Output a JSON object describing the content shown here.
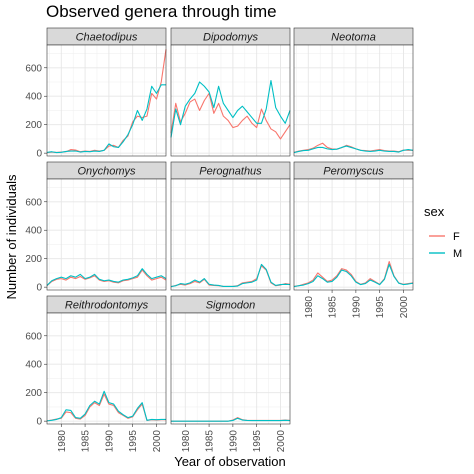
{
  "chart_data": {
    "type": "line",
    "title": "Observed genera through time",
    "xlabel": "Year of observation",
    "ylabel": "Number of individuals",
    "xlim": [
      1977,
      2002
    ],
    "ylim": [
      -20,
      760
    ],
    "x_ticks": [
      1980,
      1985,
      1990,
      1995,
      2000
    ],
    "y_ticks": [
      0,
      200,
      400,
      600
    ],
    "grid": true,
    "legend": {
      "title": "sex",
      "position": "right"
    },
    "series_styles": [
      {
        "name": "F",
        "color": "#F8766D"
      },
      {
        "name": "M",
        "color": "#00BFC4"
      }
    ],
    "x": [
      1977,
      1978,
      1979,
      1980,
      1981,
      1982,
      1983,
      1984,
      1985,
      1986,
      1987,
      1988,
      1989,
      1990,
      1991,
      1992,
      1993,
      1994,
      1995,
      1996,
      1997,
      1998,
      1999,
      2000,
      2001,
      2002
    ],
    "panels": [
      {
        "genus": "Chaetodipus",
        "F": [
          3,
          8,
          5,
          8,
          10,
          25,
          22,
          10,
          15,
          12,
          20,
          15,
          20,
          50,
          55,
          40,
          90,
          120,
          220,
          260,
          250,
          260,
          420,
          380,
          500,
          730
        ],
        "M": [
          5,
          10,
          4,
          6,
          12,
          15,
          15,
          8,
          12,
          10,
          15,
          12,
          20,
          65,
          45,
          40,
          80,
          130,
          200,
          300,
          230,
          310,
          470,
          420,
          480,
          480
        ]
      },
      {
        "genus": "Dipodomys",
        "F": [
          140,
          350,
          220,
          280,
          360,
          380,
          300,
          370,
          420,
          280,
          350,
          260,
          230,
          180,
          190,
          230,
          260,
          210,
          180,
          310,
          230,
          170,
          150,
          100,
          150,
          200
        ],
        "M": [
          110,
          310,
          200,
          330,
          380,
          420,
          500,
          470,
          430,
          320,
          470,
          350,
          300,
          250,
          300,
          330,
          290,
          250,
          210,
          210,
          310,
          510,
          320,
          260,
          210,
          300
        ]
      },
      {
        "genus": "Neotoma",
        "F": [
          5,
          15,
          20,
          25,
          35,
          55,
          70,
          40,
          30,
          28,
          38,
          55,
          45,
          30,
          20,
          18,
          15,
          20,
          25,
          18,
          15,
          15,
          10,
          22,
          20,
          20
        ],
        "M": [
          4,
          12,
          18,
          20,
          30,
          40,
          40,
          30,
          25,
          28,
          40,
          50,
          40,
          30,
          20,
          15,
          12,
          15,
          20,
          15,
          12,
          12,
          8,
          20,
          25,
          20
        ]
      },
      {
        "genus": "Onychomys",
        "F": [
          10,
          40,
          55,
          60,
          50,
          70,
          60,
          75,
          55,
          65,
          80,
          50,
          40,
          45,
          35,
          30,
          45,
          50,
          60,
          70,
          120,
          80,
          50,
          60,
          70,
          50
        ],
        "M": [
          12,
          45,
          60,
          70,
          60,
          80,
          70,
          90,
          60,
          70,
          90,
          55,
          45,
          50,
          40,
          35,
          50,
          55,
          65,
          80,
          130,
          90,
          60,
          70,
          80,
          60
        ]
      },
      {
        "genus": "Perognathus",
        "F": [
          3,
          12,
          20,
          15,
          25,
          40,
          30,
          55,
          15,
          12,
          10,
          5,
          5,
          5,
          10,
          30,
          35,
          40,
          60,
          150,
          120,
          30,
          10,
          15,
          25,
          20
        ],
        "M": [
          4,
          10,
          25,
          20,
          30,
          50,
          35,
          60,
          20,
          15,
          12,
          5,
          5,
          5,
          8,
          25,
          30,
          35,
          50,
          160,
          125,
          35,
          12,
          18,
          20,
          18
        ]
      },
      {
        "genus": "Peromyscus",
        "F": [
          5,
          10,
          20,
          30,
          50,
          100,
          70,
          40,
          50,
          80,
          130,
          120,
          90,
          40,
          20,
          30,
          60,
          40,
          20,
          60,
          180,
          80,
          30,
          20,
          25,
          30
        ],
        "M": [
          4,
          10,
          15,
          25,
          40,
          80,
          60,
          35,
          40,
          70,
          120,
          110,
          80,
          35,
          18,
          25,
          50,
          35,
          18,
          55,
          160,
          75,
          28,
          18,
          22,
          28
        ]
      },
      {
        "genus": "Reithrodontomys",
        "F": [
          2,
          8,
          15,
          20,
          65,
          60,
          20,
          15,
          40,
          100,
          130,
          110,
          190,
          120,
          110,
          60,
          40,
          20,
          30,
          80,
          120,
          5,
          10,
          8,
          10,
          10
        ],
        "M": [
          2,
          6,
          12,
          25,
          80,
          75,
          25,
          20,
          50,
          110,
          140,
          120,
          210,
          130,
          120,
          70,
          45,
          25,
          35,
          90,
          130,
          6,
          12,
          10,
          12,
          12
        ]
      },
      {
        "genus": "Sigmodon",
        "F": [
          0,
          0,
          0,
          0,
          0,
          0,
          0,
          0,
          0,
          0,
          0,
          0,
          0,
          8,
          25,
          10,
          5,
          5,
          5,
          5,
          5,
          5,
          5,
          5,
          8,
          5
        ],
        "M": [
          0,
          0,
          0,
          0,
          0,
          0,
          0,
          0,
          0,
          0,
          0,
          0,
          0,
          5,
          20,
          8,
          5,
          4,
          4,
          4,
          4,
          4,
          4,
          4,
          6,
          4
        ]
      }
    ]
  }
}
